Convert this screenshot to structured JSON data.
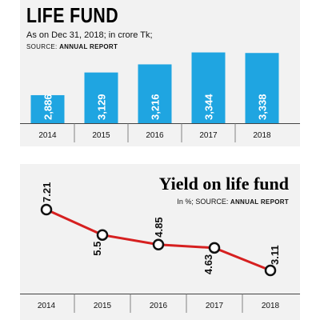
{
  "chart_data": [
    {
      "type": "bar",
      "title": "LIFE FUND",
      "subtitle": "As on Dec 31, 2018; in crore Tk;",
      "source_label": "SOURCE:",
      "source_value": "ANNUAL REPORT",
      "categories": [
        "2014",
        "2015",
        "2016",
        "2017",
        "2018"
      ],
      "values": [
        2886,
        3129,
        3216,
        3344,
        3338
      ],
      "value_labels": [
        "2,886",
        "3,129",
        "3,216",
        "3,344",
        "3,338"
      ],
      "color": "#1fa5e1"
    },
    {
      "type": "line",
      "title": "Yield on life fund",
      "unit_label": "In %;",
      "source_label": "SOURCE:",
      "source_value": "ANNUAL REPORT",
      "categories": [
        "2014",
        "2015",
        "2016",
        "2017",
        "2018"
      ],
      "values": [
        7.21,
        5.5,
        4.85,
        4.63,
        3.11
      ],
      "value_labels": [
        "7.21",
        "5.5",
        "4.85",
        "4.63",
        "3.11"
      ],
      "color": "#d62020"
    }
  ]
}
